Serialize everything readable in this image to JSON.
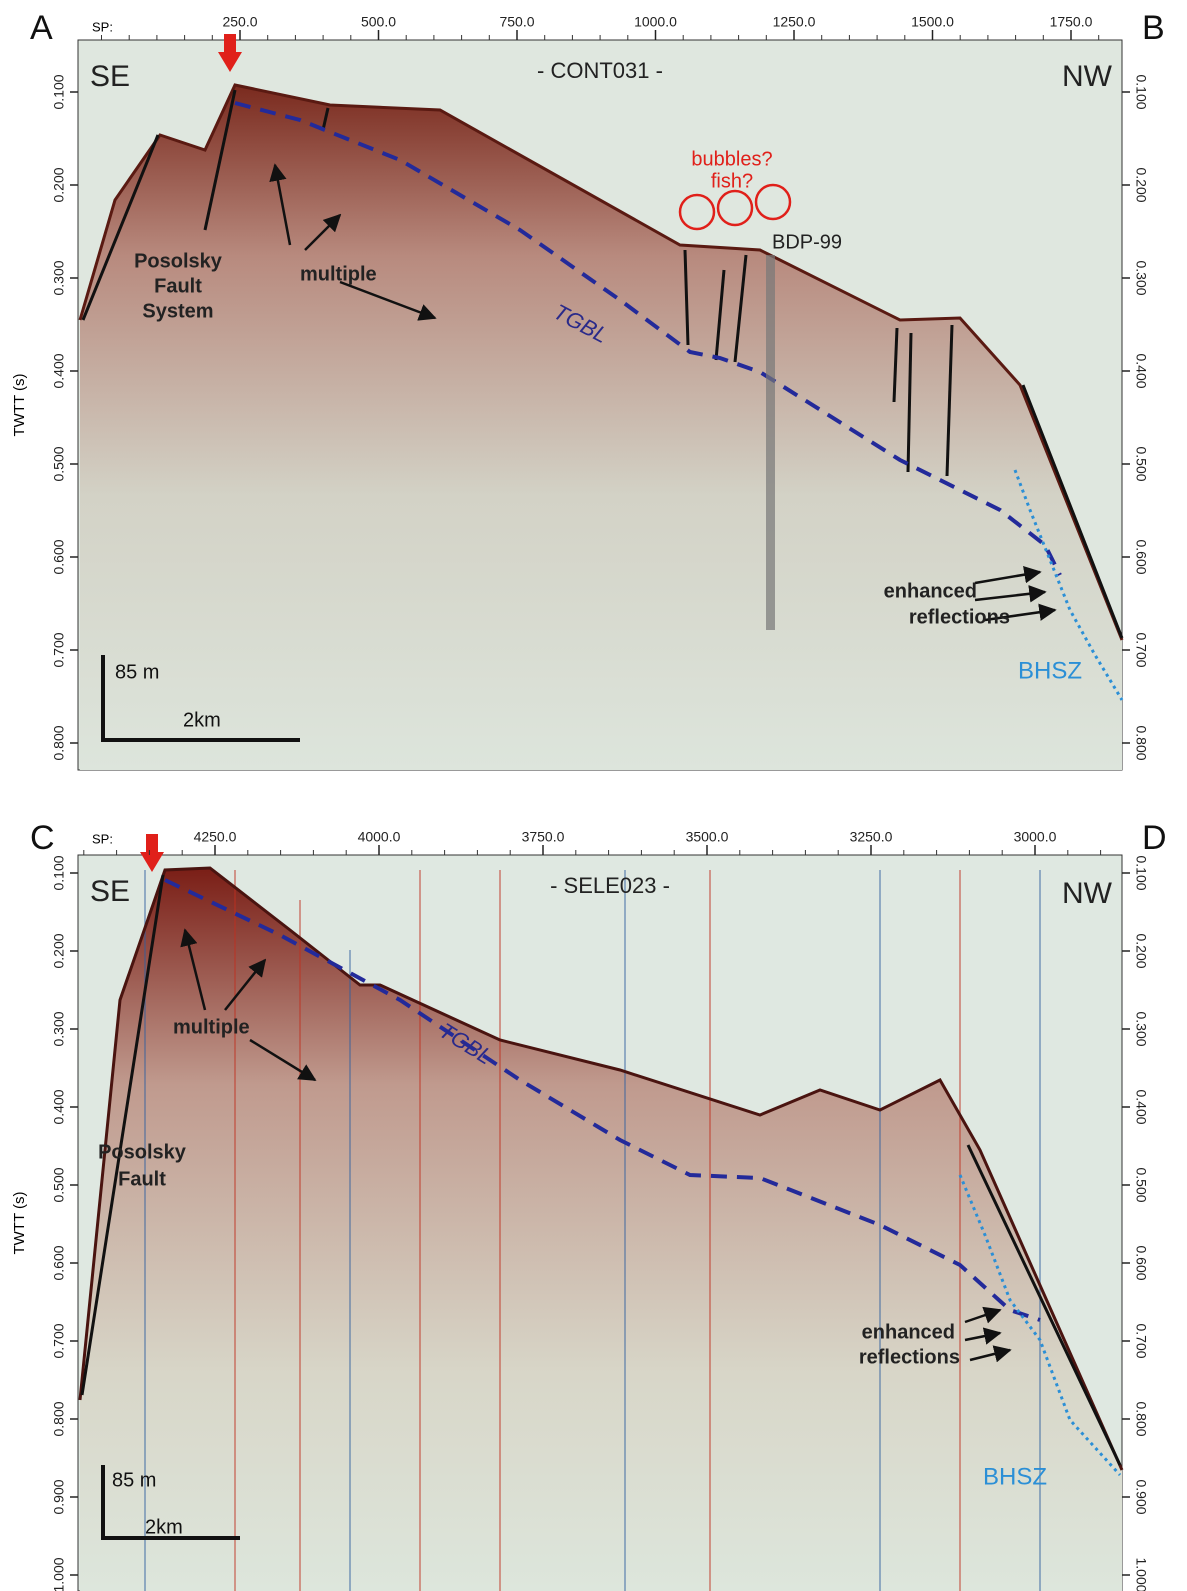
{
  "panels": [
    {
      "left_letter": "A",
      "right_letter": "B",
      "sp_label": "SP:",
      "sp_ticks": [
        "250.0",
        "500.0",
        "750.0",
        "1000.0",
        "1250.0",
        "1500.0",
        "1750.0"
      ],
      "left_direction": "SE",
      "right_direction": "NW",
      "profile_name": "- CONT031 -",
      "y_axis_title": "TWTT (s)",
      "twtt_ticks": [
        "0.100",
        "0.200",
        "0.300",
        "0.400",
        "0.500",
        "0.600",
        "0.700",
        "0.800"
      ],
      "fault_label": [
        "Posolsky",
        "Fault",
        "System"
      ],
      "multiple_label": "multiple",
      "tgbl_label": "TGBL",
      "bubble_labels": [
        "bubbles?",
        "fish?"
      ],
      "borehole_label": "BDP-99",
      "reflection_label": [
        "enhanced",
        "reflections"
      ],
      "bhsz_label": "BHSZ",
      "scale_vertical": "85 m",
      "scale_horizontal": "2km"
    },
    {
      "left_letter": "C",
      "right_letter": "D",
      "sp_label": "SP:",
      "sp_ticks": [
        "4250.0",
        "4000.0",
        "3750.0",
        "3500.0",
        "3250.0",
        "3000.0"
      ],
      "left_direction": "SE",
      "right_direction": "NW",
      "profile_name": "- SELE023 -",
      "y_axis_title": "TWTT (s)",
      "twtt_ticks": [
        "0.100",
        "0.200",
        "0.300",
        "0.400",
        "0.500",
        "0.600",
        "0.700",
        "0.800",
        "0.900",
        "1.000"
      ],
      "fault_label": [
        "Posolsky",
        "Fault"
      ],
      "multiple_label": "multiple",
      "tgbl_label": "TGBL",
      "reflection_label": [
        "enhanced",
        "reflections"
      ],
      "bhsz_label": "BHSZ",
      "scale_vertical": "85 m",
      "scale_horizontal": "2km"
    }
  ]
}
